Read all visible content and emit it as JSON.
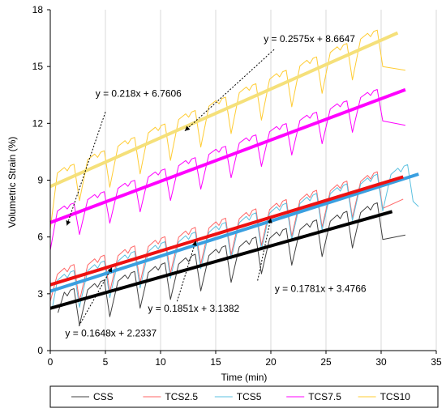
{
  "chart_data": {
    "type": "line",
    "title": "",
    "xlabel": "Time (min)",
    "ylabel": "Volumetric Strain (%)",
    "xlim": [
      0,
      35
    ],
    "ylim": [
      0,
      18
    ],
    "xticks": [
      0,
      5,
      10,
      15,
      20,
      25,
      30,
      35
    ],
    "yticks": [
      0,
      3,
      6,
      9,
      12,
      15,
      18
    ],
    "grid": "vertical",
    "legend_position": "bottom",
    "series": [
      {
        "name": "CSS",
        "color": "#404040",
        "base_slope": 0.1648,
        "base_intercept": 2.2337,
        "cycle_period": 2.75,
        "peak_offset": 0.55,
        "trough_offset": -1.25,
        "first_x": 0.7,
        "last_x": 32.2,
        "first_y": 2.0,
        "last_y": 6.1
      },
      {
        "name": "TCS2.5",
        "color": "#ff6666",
        "base_slope": 0.1781,
        "base_intercept": 3.4766,
        "cycle_period": 2.75,
        "peak_offset": 0.55,
        "trough_offset": -1.25,
        "first_x": 0.0,
        "last_x": 32.0,
        "first_y": 2.6,
        "last_y": 8.0
      },
      {
        "name": "TCS5",
        "color": "#5bc0e0",
        "base_slope": 0.1851,
        "base_intercept": 3.1382,
        "cycle_period": 2.75,
        "peak_offset": 0.55,
        "trough_offset": -1.25,
        "first_x": 0.2,
        "last_x": 33.4,
        "first_y": 2.3,
        "last_y": 7.6
      },
      {
        "name": "TCS7.5",
        "color": "#ff00ff",
        "base_slope": 0.218,
        "base_intercept": 6.7606,
        "cycle_period": 2.75,
        "peak_offset": 0.45,
        "trough_offset": -1.1,
        "first_x": 0.0,
        "last_x": 32.2,
        "first_y": 5.3,
        "last_y": 11.9
      },
      {
        "name": "TCS10",
        "color": "#ffcc33",
        "base_slope": 0.2575,
        "base_intercept": 8.6647,
        "cycle_period": 2.75,
        "peak_offset": 0.5,
        "trough_offset": -1.3,
        "first_x": 0.0,
        "last_x": 32.2,
        "first_y": 6.4,
        "last_y": 14.8
      }
    ],
    "trendlines": [
      {
        "series": "CSS",
        "slope": 0.1648,
        "intercept": 2.2337,
        "x_range": [
          0,
          31
        ],
        "color": "#000000"
      },
      {
        "series": "TCS5",
        "slope": 0.1851,
        "intercept": 3.1382,
        "x_range": [
          0,
          33.4
        ],
        "color": "#3a9fe0"
      },
      {
        "series": "TCS2.5",
        "slope": 0.1781,
        "intercept": 3.4766,
        "x_range": [
          0,
          32
        ],
        "color": "#ee1111"
      },
      {
        "series": "TCS7.5",
        "slope": 0.218,
        "intercept": 6.7606,
        "x_range": [
          0,
          32.2
        ],
        "color": "#ff00ff"
      },
      {
        "series": "TCS10",
        "slope": 0.2575,
        "intercept": 8.6647,
        "x_range": [
          0,
          31.5
        ],
        "color": "#f5e07a"
      }
    ],
    "annotations": [
      {
        "text": "y = 0.2575x + 8.6647",
        "label_x": 23.5,
        "label_y": 16.3,
        "arrow_from": [
          20.3,
          15.9
        ],
        "arrow_to": [
          12.2,
          11.6
        ]
      },
      {
        "text": "y = 0.218x + 6.7606",
        "label_x": 8.0,
        "label_y": 13.4,
        "arrow_from": [
          5.0,
          12.6
        ],
        "arrow_to": [
          1.5,
          6.6
        ]
      },
      {
        "text": "y = 0.1781x + 3.4766",
        "label_x": 24.5,
        "label_y": 3.1,
        "arrow_from": [
          18.8,
          3.7
        ],
        "arrow_to": [
          20.0,
          7.0
        ]
      },
      {
        "text": "y = 0.1851x + 3.1382",
        "label_x": 13.0,
        "label_y": 2.05,
        "arrow_from": [
          11.5,
          2.6
        ],
        "arrow_to": [
          13.2,
          5.8
        ]
      },
      {
        "text": "y = 0.1648x + 2.2337",
        "label_x": 5.5,
        "label_y": 0.75,
        "arrow_from": [
          2.6,
          1.3
        ],
        "arrow_to": [
          5.6,
          4.4
        ]
      }
    ]
  }
}
